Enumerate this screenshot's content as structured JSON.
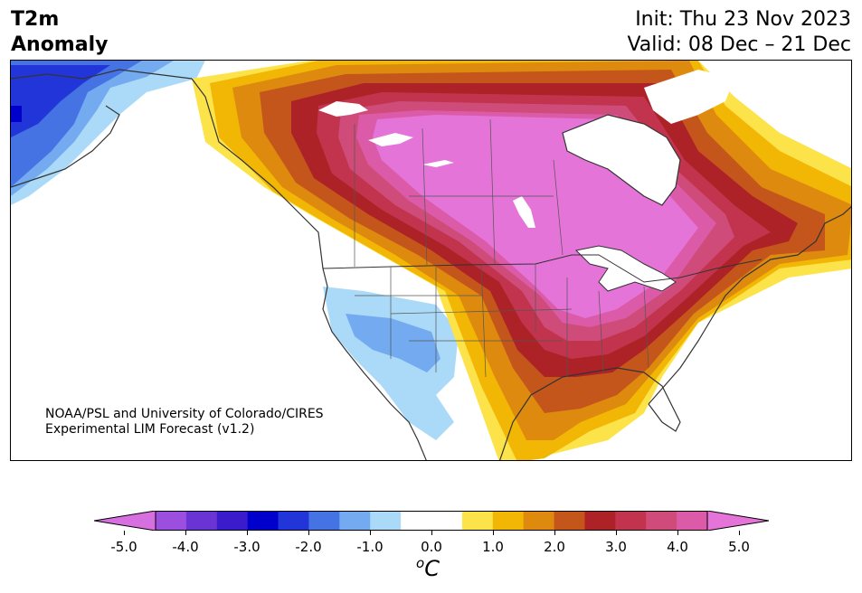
{
  "header": {
    "title_line1": "T2m",
    "title_line2": "Anomaly",
    "init": "Init: Thu 23 Nov 2023",
    "valid": "Valid: 08 Dec – 21 Dec"
  },
  "credit": {
    "line1": "NOAA/PSL and University of Colorado/CIRES",
    "line2": "Experimental LIM Forecast (v1.2)"
  },
  "colorbar": {
    "colors": [
      "#d66fe0",
      "#9c4fdf",
      "#6a33d6",
      "#3b1ccd",
      "#0000cc",
      "#2235d9",
      "#4673e3",
      "#73aaf0",
      "#abdaf9",
      "#ffffff",
      "#ffffff",
      "#fde34a",
      "#f2b705",
      "#dd8a0f",
      "#c5561b",
      "#ad2226",
      "#c2344e",
      "#cf4b7a",
      "#dc5ba8",
      "#e574d8"
    ],
    "tick_labels": [
      "-5.0",
      "-4.0",
      "-3.0",
      "-2.0",
      "-1.0",
      "0.0",
      "1.0",
      "2.0",
      "3.0",
      "4.0",
      "5.0"
    ],
    "units": "C",
    "units_super": "o"
  },
  "map": {
    "region": "North America",
    "variable": "2m temperature anomaly"
  }
}
